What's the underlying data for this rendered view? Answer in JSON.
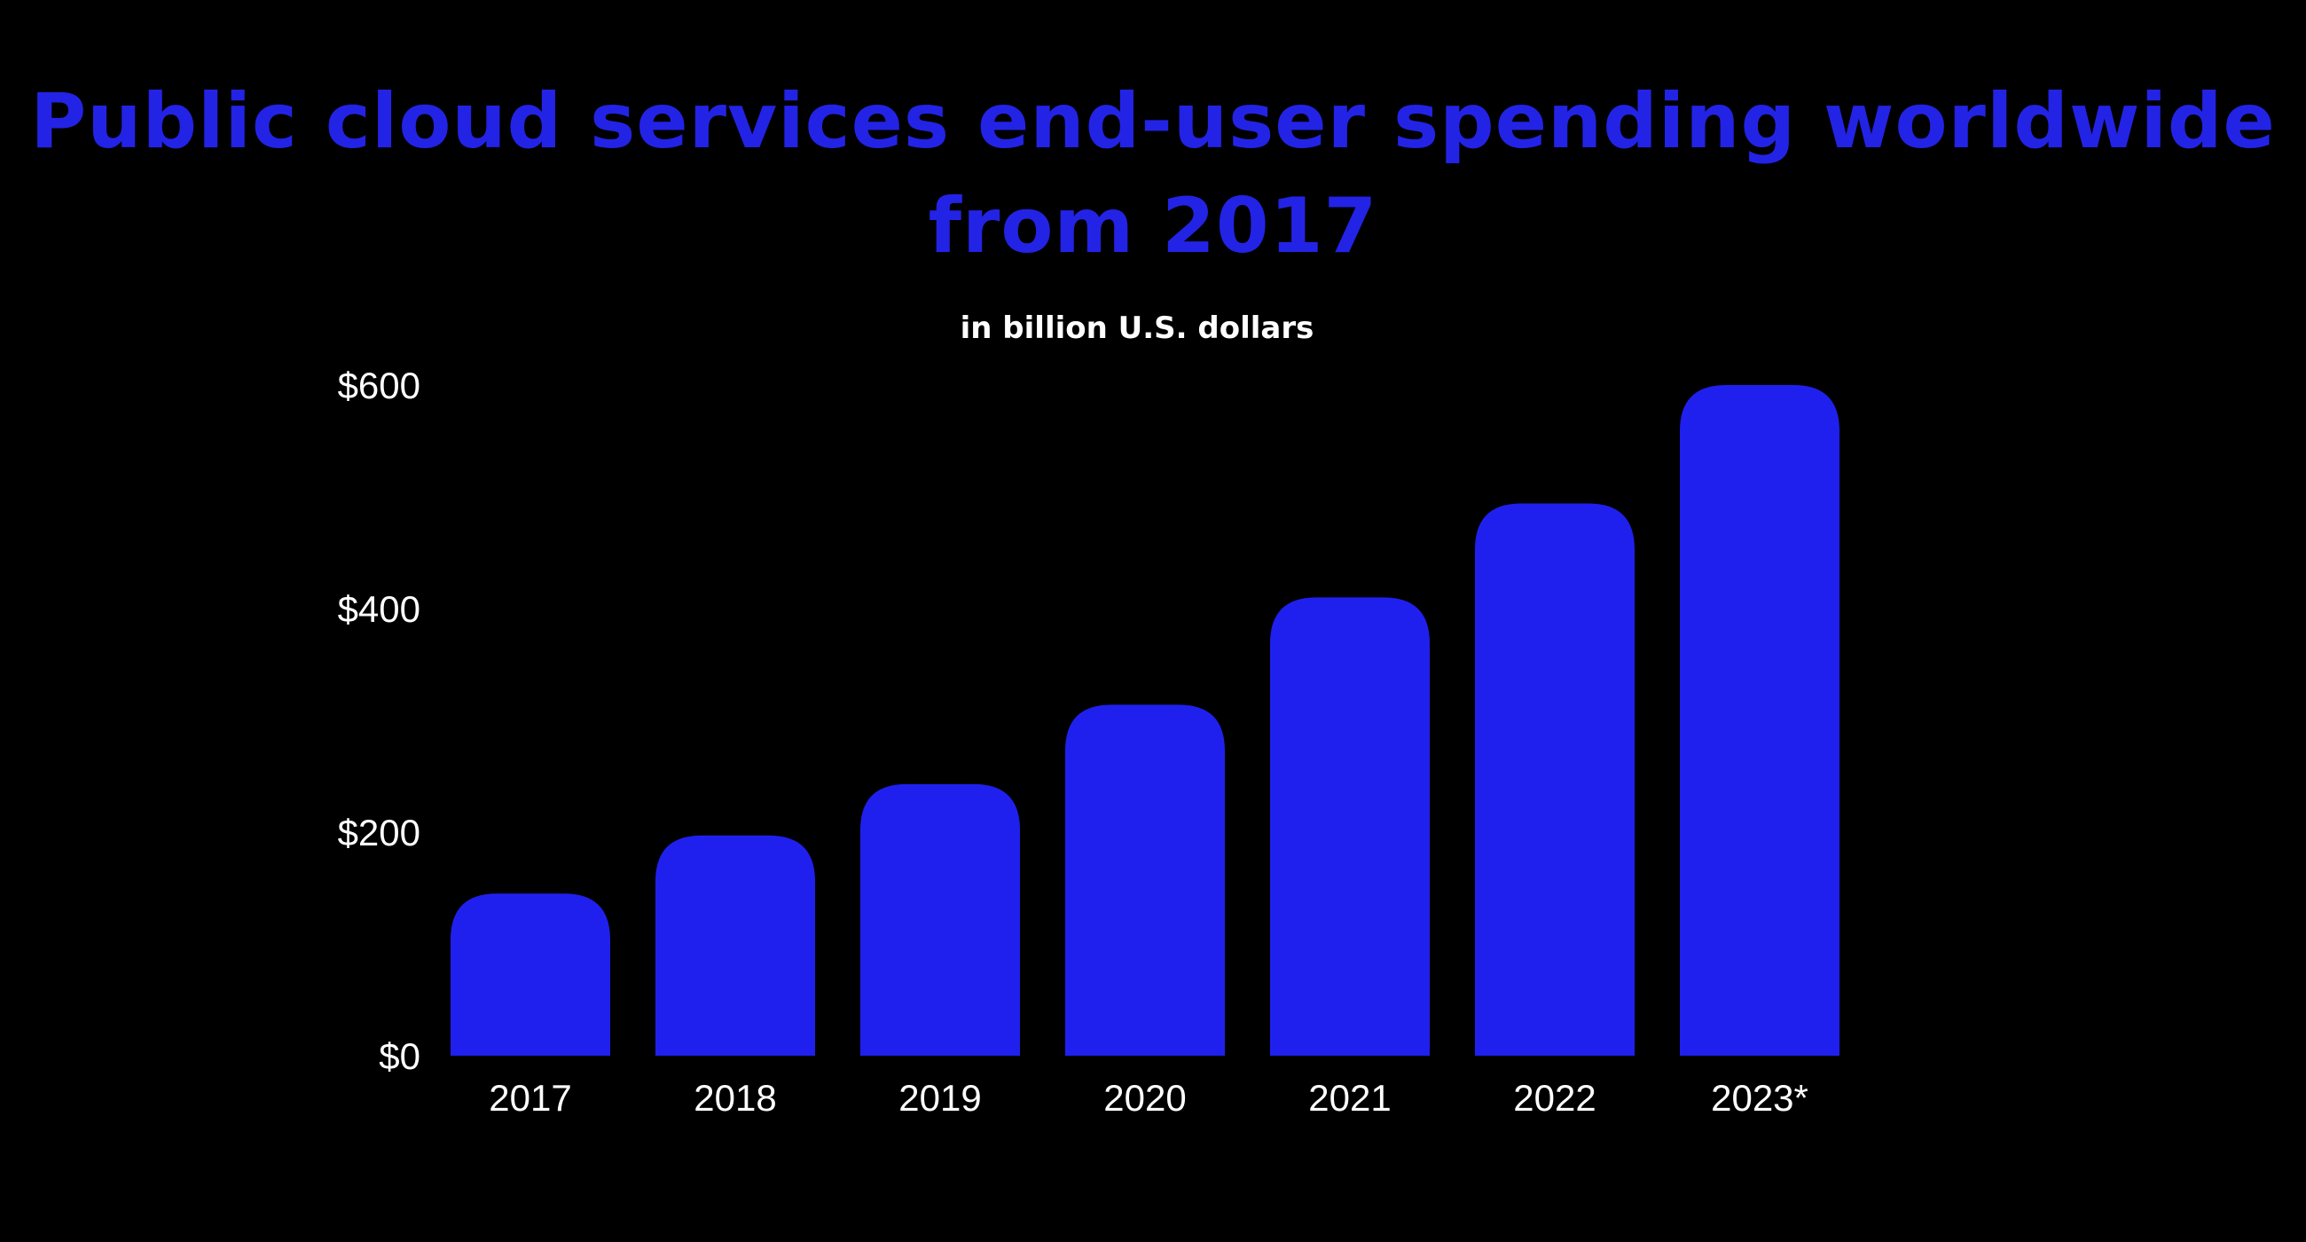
{
  "colors": {
    "background": "#000000",
    "bar": "#2020ee",
    "title": "#2323e6",
    "text": "#ffffff"
  },
  "chart_data": {
    "type": "bar",
    "title": "Public cloud services end-user spending worldwide from 2017",
    "subtitle": "in billion U.S. dollars",
    "categories": [
      "2017",
      "2018",
      "2019",
      "2020",
      "2021",
      "2022",
      "2023*"
    ],
    "values": [
      145,
      197,
      243,
      314,
      410,
      494,
      600
    ],
    "ylim": [
      0,
      600
    ],
    "yticks": [
      {
        "value": 0,
        "label": "$0"
      },
      {
        "value": 200,
        "label": "$200"
      },
      {
        "value": 400,
        "label": "$400"
      },
      {
        "value": 600,
        "label": "$600"
      }
    ],
    "grid": false,
    "legend": "none"
  }
}
